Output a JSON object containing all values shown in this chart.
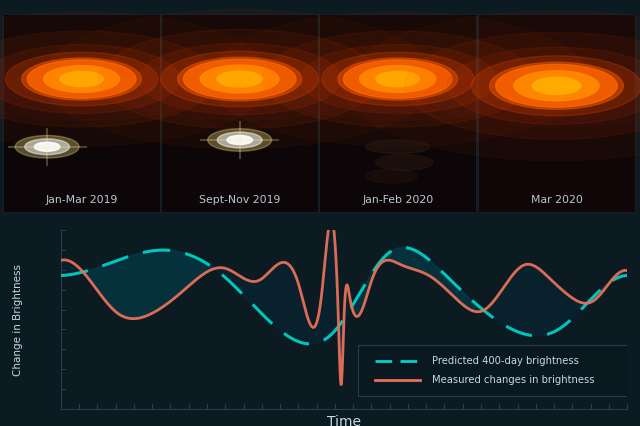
{
  "bg_color": "#0c1a22",
  "chart_bg": "#0c1a22",
  "predicted_color": "#00d4c8",
  "measured_color": "#e8705a",
  "ylabel": "Change in Brightness",
  "xlabel": "Time",
  "legend_predicted": "Predicted 400-day brightness",
  "legend_measured": "Measured changes in brightness",
  "image_labels": [
    "Jan-Mar 2019",
    "Sept-Nov 2019",
    "Jan-Feb 2020",
    "Mar 2020"
  ],
  "tick_color": "#445566",
  "text_color": "#c8d8e0",
  "panel_bg": "#0a1218",
  "fill_color": "#0a3040"
}
